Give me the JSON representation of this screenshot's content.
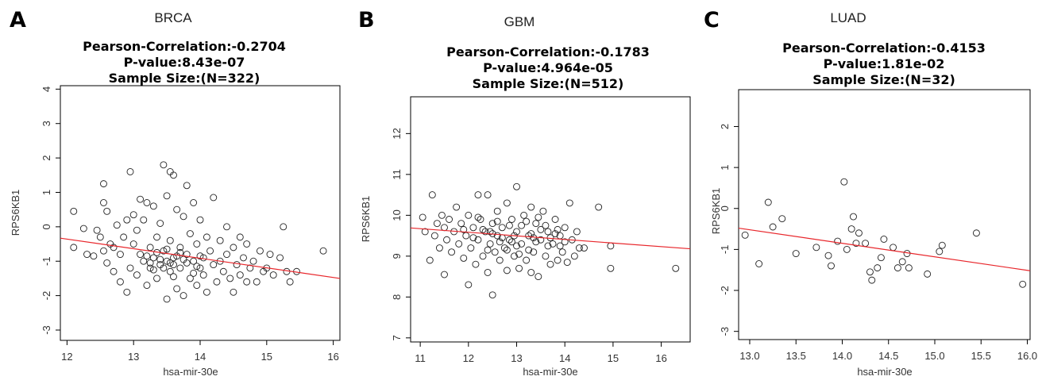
{
  "chart_data": [
    {
      "type": "scatter",
      "panel_letter": "A",
      "cancer_label": "BRCA",
      "title_lines": [
        "Pearson-Correlation:-0.2704",
        "P-value:8.43e-07",
        "Sample Size:(N=322)"
      ],
      "xlabel": "hsa-mir-30e",
      "ylabel": "RPS6KB1",
      "xlim": [
        11.9,
        16.1
      ],
      "ylim": [
        -3.3,
        4.1
      ],
      "xticks": [
        12,
        13,
        14,
        15,
        16
      ],
      "yticks": [
        -3,
        -2,
        -1,
        0,
        1,
        2,
        3,
        4
      ],
      "fit_line": {
        "x": [
          11.9,
          16.1
        ],
        "y": [
          -0.33,
          -1.5
        ],
        "color": "#e8262b"
      },
      "point_count": 322,
      "points": [
        [
          12.1,
          0.45
        ],
        [
          12.1,
          -0.6
        ],
        [
          12.25,
          -0.05
        ],
        [
          12.3,
          -0.8
        ],
        [
          12.4,
          -0.85
        ],
        [
          12.45,
          -0.1
        ],
        [
          12.5,
          -0.3
        ],
        [
          12.55,
          -0.7
        ],
        [
          12.55,
          1.25
        ],
        [
          12.55,
          0.7
        ],
        [
          12.6,
          0.45
        ],
        [
          12.6,
          -1.05
        ],
        [
          12.65,
          -0.5
        ],
        [
          12.7,
          -1.3
        ],
        [
          12.7,
          -0.6
        ],
        [
          12.75,
          0.05
        ],
        [
          12.8,
          -1.6
        ],
        [
          12.8,
          -0.8
        ],
        [
          12.85,
          -0.3
        ],
        [
          12.9,
          0.2
        ],
        [
          12.9,
          -1.9
        ],
        [
          12.95,
          -1.2
        ],
        [
          12.95,
          1.6
        ],
        [
          13.0,
          -0.5
        ],
        [
          13.0,
          0.35
        ],
        [
          13.05,
          -1.4
        ],
        [
          13.05,
          -0.1
        ],
        [
          13.1,
          0.8
        ],
        [
          13.1,
          -0.8
        ],
        [
          13.15,
          -1.0
        ],
        [
          13.15,
          0.2
        ],
        [
          13.2,
          -1.7
        ],
        [
          13.2,
          0.7
        ],
        [
          13.25,
          -0.6
        ],
        [
          13.25,
          -1.2
        ],
        [
          13.3,
          0.6
        ],
        [
          13.3,
          -0.9
        ],
        [
          13.35,
          -0.3
        ],
        [
          13.35,
          -1.5
        ],
        [
          13.4,
          -1.1
        ],
        [
          13.4,
          0.1
        ],
        [
          13.45,
          -0.7
        ],
        [
          13.45,
          1.8
        ],
        [
          13.5,
          -2.1
        ],
        [
          13.5,
          -1.0
        ],
        [
          13.5,
          0.9
        ],
        [
          13.55,
          1.6
        ],
        [
          13.55,
          -0.4
        ],
        [
          13.55,
          -1.3
        ],
        [
          13.6,
          1.5
        ],
        [
          13.6,
          -0.9
        ],
        [
          13.65,
          -1.8
        ],
        [
          13.65,
          0.5
        ],
        [
          13.7,
          -0.6
        ],
        [
          13.7,
          -1.2
        ],
        [
          13.75,
          -2.0
        ],
        [
          13.75,
          0.3
        ],
        [
          13.8,
          1.2
        ],
        [
          13.8,
          -0.8
        ],
        [
          13.85,
          -1.5
        ],
        [
          13.85,
          -0.2
        ],
        [
          13.9,
          -1.0
        ],
        [
          13.9,
          0.7
        ],
        [
          13.95,
          -1.7
        ],
        [
          13.95,
          -0.5
        ],
        [
          14.0,
          -1.2
        ],
        [
          14.0,
          0.2
        ],
        [
          14.05,
          -0.9
        ],
        [
          14.05,
          -1.4
        ],
        [
          14.1,
          -0.3
        ],
        [
          14.1,
          -1.9
        ],
        [
          14.15,
          -0.7
        ],
        [
          14.2,
          0.85
        ],
        [
          14.2,
          -1.1
        ],
        [
          14.25,
          -1.6
        ],
        [
          14.3,
          -0.4
        ],
        [
          14.3,
          -1.0
        ],
        [
          14.35,
          -1.3
        ],
        [
          14.4,
          0.0
        ],
        [
          14.4,
          -0.8
        ],
        [
          14.45,
          -1.5
        ],
        [
          14.5,
          -0.6
        ],
        [
          14.5,
          -1.9
        ],
        [
          14.55,
          -1.1
        ],
        [
          14.6,
          -0.3
        ],
        [
          14.6,
          -1.4
        ],
        [
          14.65,
          -0.9
        ],
        [
          14.7,
          -1.6
        ],
        [
          14.7,
          -0.5
        ],
        [
          14.75,
          -1.2
        ],
        [
          14.8,
          -1.0
        ],
        [
          14.85,
          -1.6
        ],
        [
          14.9,
          -0.7
        ],
        [
          14.95,
          -1.3
        ],
        [
          15.0,
          -1.2
        ],
        [
          15.05,
          -0.8
        ],
        [
          15.1,
          -1.4
        ],
        [
          15.2,
          -0.9
        ],
        [
          15.25,
          0.0
        ],
        [
          15.3,
          -1.3
        ],
        [
          15.35,
          -1.6
        ],
        [
          15.45,
          -1.3
        ],
        [
          15.85,
          -0.7
        ],
        [
          13.6,
          -1.1
        ],
        [
          13.4,
          -0.95
        ],
        [
          13.7,
          -0.75
        ],
        [
          13.3,
          -1.25
        ],
        [
          13.8,
          -1.05
        ],
        [
          13.5,
          -0.65
        ],
        [
          13.9,
          -1.35
        ],
        [
          13.2,
          -0.85
        ],
        [
          14.0,
          -0.85
        ],
        [
          13.6,
          -1.45
        ],
        [
          13.45,
          -1.2
        ],
        [
          13.75,
          -0.95
        ],
        [
          13.55,
          -1.05
        ],
        [
          13.35,
          -0.75
        ],
        [
          13.65,
          -0.85
        ],
        [
          13.95,
          -1.15
        ],
        [
          13.25,
          -1.05
        ]
      ]
    },
    {
      "type": "scatter",
      "panel_letter": "B",
      "cancer_label": "GBM",
      "title_lines": [
        "Pearson-Correlation:-0.1783",
        "P-value:4.964e-05",
        "Sample Size:(N=512)"
      ],
      "xlabel": "hsa-mir-30e",
      "ylabel": "RPS6KB1",
      "xlim": [
        10.8,
        16.6
      ],
      "ylim": [
        6.9,
        12.9
      ],
      "xticks": [
        11,
        12,
        13,
        14,
        15,
        16
      ],
      "yticks": [
        7,
        8,
        9,
        10,
        11,
        12
      ],
      "fit_line": {
        "x": [
          10.8,
          16.6
        ],
        "y": [
          9.69,
          9.18
        ],
        "color": "#e8262b"
      },
      "point_count": 512,
      "points": [
        [
          11.05,
          9.95
        ],
        [
          11.1,
          9.6
        ],
        [
          11.2,
          8.9
        ],
        [
          11.25,
          10.5
        ],
        [
          11.3,
          9.5
        ],
        [
          11.35,
          9.8
        ],
        [
          11.4,
          9.2
        ],
        [
          11.45,
          10.0
        ],
        [
          11.5,
          8.55
        ],
        [
          11.5,
          9.7
        ],
        [
          11.55,
          9.4
        ],
        [
          11.6,
          9.9
        ],
        [
          11.65,
          9.1
        ],
        [
          11.7,
          9.6
        ],
        [
          11.75,
          10.2
        ],
        [
          11.8,
          9.3
        ],
        [
          11.85,
          9.8
        ],
        [
          11.9,
          8.95
        ],
        [
          11.95,
          9.5
        ],
        [
          12.0,
          8.3
        ],
        [
          12.0,
          10.0
        ],
        [
          12.05,
          9.2
        ],
        [
          12.1,
          9.7
        ],
        [
          12.15,
          8.8
        ],
        [
          12.2,
          10.5
        ],
        [
          12.2,
          9.4
        ],
        [
          12.25,
          9.9
        ],
        [
          12.3,
          9.0
        ],
        [
          12.35,
          9.6
        ],
        [
          12.4,
          10.5
        ],
        [
          12.4,
          8.6
        ],
        [
          12.45,
          9.3
        ],
        [
          12.5,
          9.8
        ],
        [
          12.5,
          8.05
        ],
        [
          12.55,
          9.1
        ],
        [
          12.6,
          10.1
        ],
        [
          12.6,
          9.5
        ],
        [
          12.65,
          8.9
        ],
        [
          12.7,
          9.7
        ],
        [
          12.75,
          9.2
        ],
        [
          12.8,
          10.3
        ],
        [
          12.8,
          8.65
        ],
        [
          12.85,
          9.4
        ],
        [
          12.9,
          9.9
        ],
        [
          12.95,
          9.0
        ],
        [
          13.0,
          10.7
        ],
        [
          13.0,
          9.6
        ],
        [
          13.05,
          8.7
        ],
        [
          13.1,
          9.3
        ],
        [
          13.15,
          10.0
        ],
        [
          13.2,
          8.9
        ],
        [
          13.25,
          9.5
        ],
        [
          13.3,
          10.2
        ],
        [
          13.3,
          8.6
        ],
        [
          13.35,
          9.1
        ],
        [
          13.4,
          9.8
        ],
        [
          13.45,
          8.5
        ],
        [
          13.5,
          9.4
        ],
        [
          13.55,
          10.1
        ],
        [
          13.6,
          9.0
        ],
        [
          13.65,
          9.6
        ],
        [
          13.7,
          8.8
        ],
        [
          13.75,
          9.3
        ],
        [
          13.8,
          9.9
        ],
        [
          13.85,
          8.9
        ],
        [
          13.9,
          9.5
        ],
        [
          13.95,
          9.1
        ],
        [
          14.0,
          9.7
        ],
        [
          14.05,
          8.85
        ],
        [
          14.1,
          10.3
        ],
        [
          14.15,
          9.4
        ],
        [
          14.2,
          9.0
        ],
        [
          14.25,
          9.6
        ],
        [
          14.3,
          9.2
        ],
        [
          14.4,
          9.2
        ],
        [
          14.7,
          10.2
        ],
        [
          14.95,
          9.25
        ],
        [
          14.95,
          8.7
        ],
        [
          16.3,
          8.7
        ],
        [
          12.3,
          9.65
        ],
        [
          12.5,
          9.55
        ],
        [
          12.7,
          9.45
        ],
        [
          12.9,
          9.35
        ],
        [
          13.1,
          9.75
        ],
        [
          13.3,
          9.55
        ],
        [
          13.5,
          9.65
        ],
        [
          13.7,
          9.45
        ],
        [
          13.9,
          9.25
        ],
        [
          12.1,
          9.45
        ],
        [
          12.6,
          9.85
        ],
        [
          12.8,
          9.15
        ],
        [
          13.0,
          9.25
        ],
        [
          13.2,
          9.85
        ],
        [
          13.4,
          9.35
        ],
        [
          13.6,
          9.75
        ],
        [
          13.8,
          9.55
        ],
        [
          14.0,
          9.35
        ],
        [
          12.2,
          9.95
        ],
        [
          12.4,
          9.15
        ],
        [
          11.9,
          9.65
        ],
        [
          12.65,
          9.35
        ],
        [
          12.85,
          9.75
        ],
        [
          13.05,
          9.05
        ],
        [
          13.25,
          9.15
        ],
        [
          13.45,
          9.95
        ],
        [
          13.65,
          9.25
        ],
        [
          13.85,
          9.65
        ],
        [
          12.45,
          9.6
        ],
        [
          12.95,
          9.5
        ],
        [
          13.35,
          9.45
        ]
      ]
    },
    {
      "type": "scatter",
      "panel_letter": "C",
      "cancer_label": "LUAD",
      "title_lines": [
        "Pearson-Correlation:-0.4153",
        "P-value:1.81e-02",
        "Sample Size:(N=32)"
      ],
      "xlabel": "hsa-mir-30e",
      "ylabel": "RPS6KB1",
      "xlim": [
        12.88,
        16.03
      ],
      "ylim": [
        -3.2,
        2.9
      ],
      "xticks": [
        13.0,
        13.5,
        14.0,
        14.5,
        15.0,
        15.5,
        16.0
      ],
      "yticks": [
        -3,
        -2,
        -1,
        0,
        1,
        2
      ],
      "fit_line": {
        "x": [
          12.88,
          16.03
        ],
        "y": [
          -0.48,
          -1.52
        ],
        "color": "#e8262b"
      },
      "point_count": 32,
      "points": [
        [
          12.95,
          -0.65
        ],
        [
          13.1,
          -1.35
        ],
        [
          13.2,
          0.15
        ],
        [
          13.25,
          -0.45
        ],
        [
          13.35,
          -0.25
        ],
        [
          13.5,
          -1.1
        ],
        [
          13.72,
          -0.95
        ],
        [
          13.85,
          -1.15
        ],
        [
          13.88,
          -1.4
        ],
        [
          13.95,
          -0.8
        ],
        [
          14.02,
          0.65
        ],
        [
          14.05,
          -1.0
        ],
        [
          14.1,
          -0.5
        ],
        [
          14.12,
          -0.2
        ],
        [
          14.15,
          -0.85
        ],
        [
          14.18,
          -0.6
        ],
        [
          14.25,
          -0.85
        ],
        [
          14.3,
          -1.55
        ],
        [
          14.32,
          -1.75
        ],
        [
          14.38,
          -1.45
        ],
        [
          14.42,
          -1.2
        ],
        [
          14.45,
          -0.75
        ],
        [
          14.6,
          -1.45
        ],
        [
          14.65,
          -1.3
        ],
        [
          14.7,
          -1.1
        ],
        [
          14.72,
          -1.45
        ],
        [
          14.92,
          -1.6
        ],
        [
          15.05,
          -1.05
        ],
        [
          15.08,
          -0.9
        ],
        [
          15.45,
          -0.6
        ],
        [
          15.95,
          -1.85
        ],
        [
          14.55,
          -0.95
        ]
      ]
    }
  ]
}
